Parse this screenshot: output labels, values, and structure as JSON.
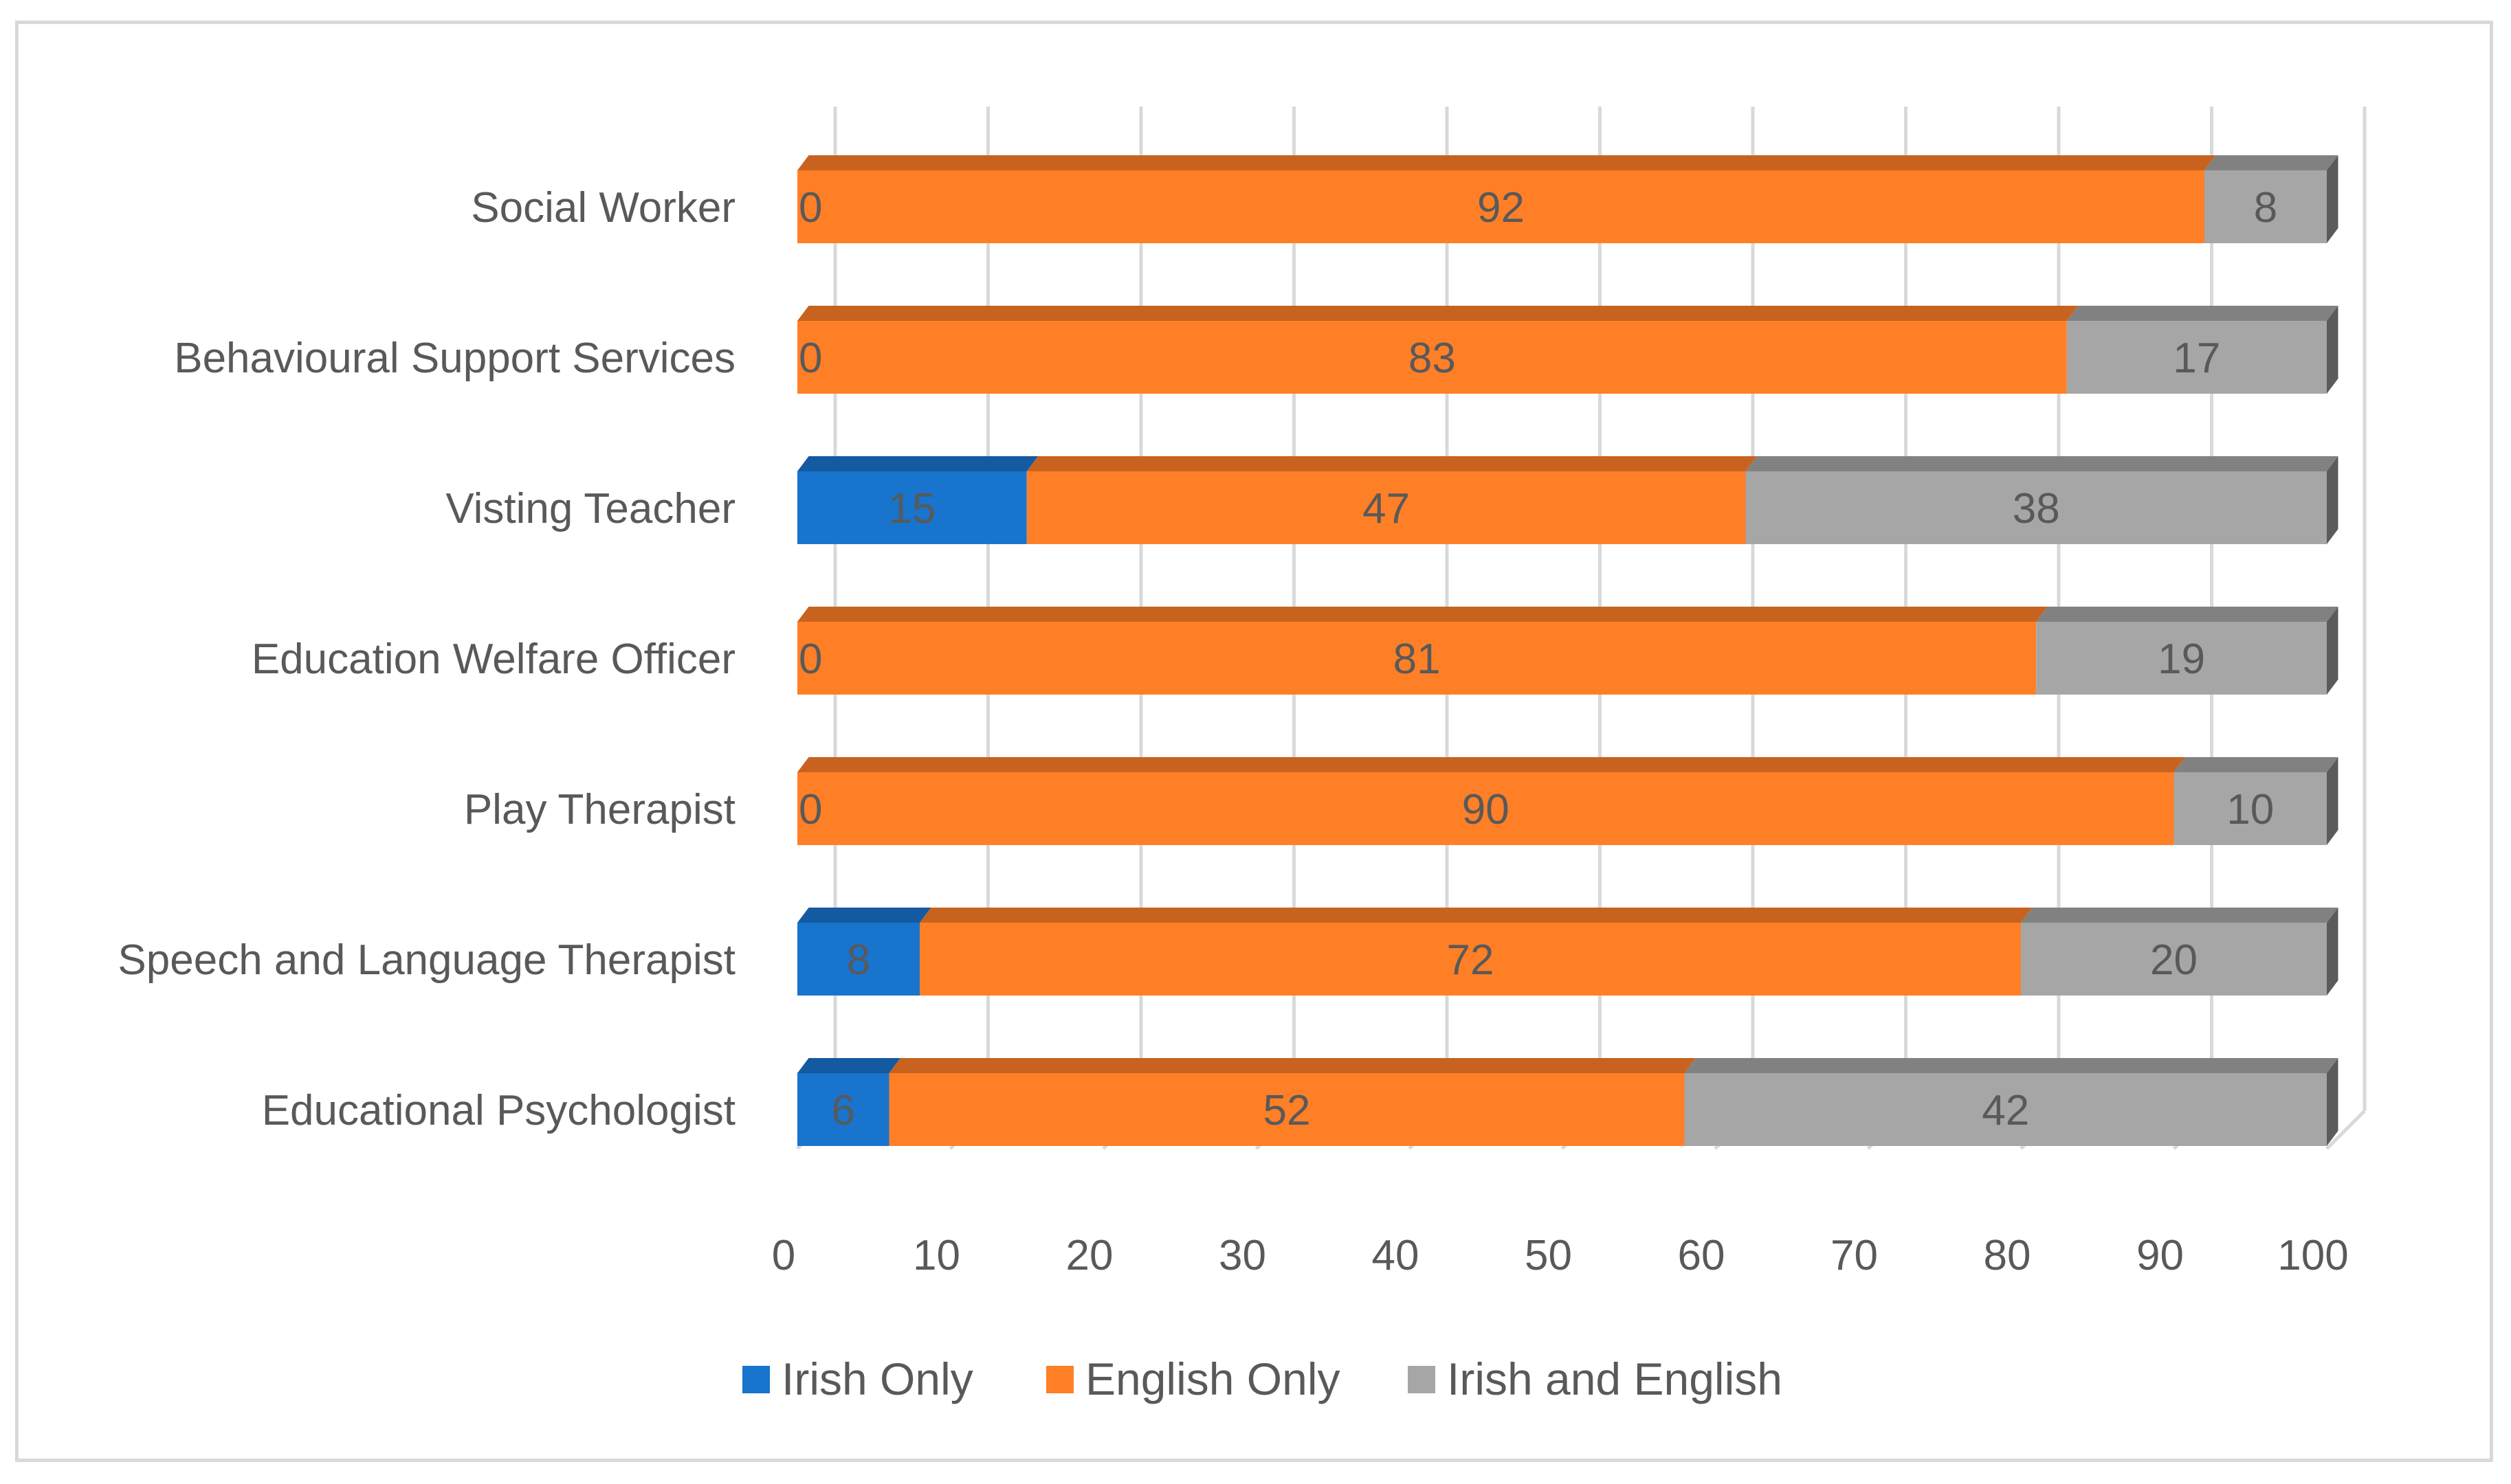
{
  "chart_data": {
    "type": "bar",
    "orientation": "horizontal",
    "stacked": true,
    "style": "3d",
    "categories": [
      "Educational Psychologist",
      "Speech and Language Therapist",
      "Play Therapist",
      "Education Welfare Officer",
      "Visting Teacher",
      "Behavioural Support Services",
      "Social Worker"
    ],
    "series": [
      {
        "name": "Irish Only",
        "color": "#1874cd",
        "values": [
          6,
          8,
          0,
          0,
          15,
          0,
          0
        ]
      },
      {
        "name": "English Only",
        "color": "#ff7f27",
        "values": [
          52,
          72,
          90,
          81,
          47,
          83,
          92
        ]
      },
      {
        "name": "Irish and English",
        "color": "#a6a6a6",
        "values": [
          42,
          20,
          10,
          19,
          38,
          17,
          8
        ]
      }
    ],
    "xlim": [
      0,
      100
    ],
    "x_ticks": [
      "0",
      "10",
      "20",
      "30",
      "40",
      "50",
      "60",
      "70",
      "80",
      "90",
      "100"
    ],
    "grid": true,
    "legend_position": "bottom",
    "data_labels": true
  }
}
